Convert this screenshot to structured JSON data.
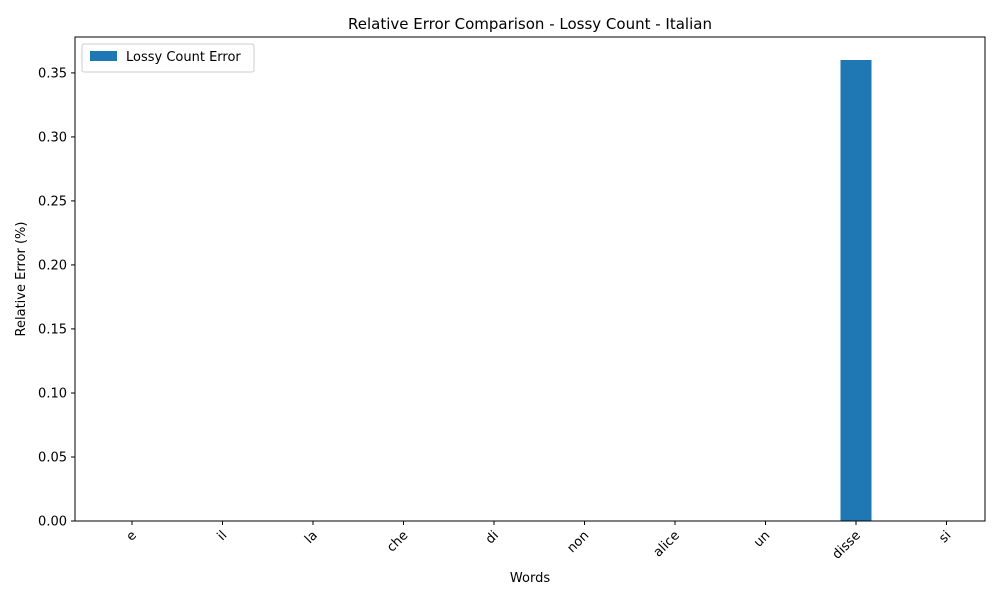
{
  "chart_data": {
    "type": "bar",
    "title": "Relative Error Comparison - Lossy Count - Italian",
    "xlabel": "Words",
    "ylabel": "Relative Error (%)",
    "categories": [
      "e",
      "il",
      "la",
      "che",
      "di",
      "non",
      "alice",
      "un",
      "disse",
      "si"
    ],
    "series": [
      {
        "name": "Lossy Count Error",
        "values": [
          0,
          0,
          0,
          0,
          0,
          0,
          0,
          0,
          0.36,
          0
        ],
        "color": "#1f77b4"
      }
    ],
    "ylim": [
      0,
      0.378
    ],
    "yticks": [
      "0.00",
      "0.05",
      "0.10",
      "0.15",
      "0.20",
      "0.25",
      "0.30",
      "0.35"
    ],
    "grid": false,
    "legend_position": "top-left"
  }
}
